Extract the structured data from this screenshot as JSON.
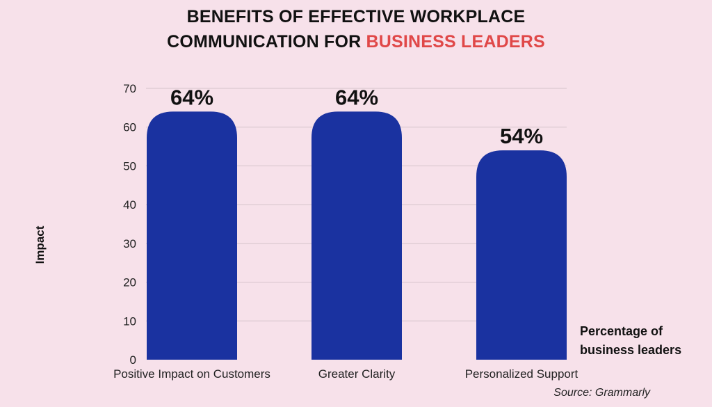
{
  "title": {
    "line1": "BENEFITS OF EFFECTIVE WORKPLACE",
    "line2_prefix": "COMMUNICATION FOR ",
    "line2_highlight": "BUSINESS LEADERS"
  },
  "colors": {
    "background": "#f7e1ea",
    "bar": "#1a32a0",
    "highlight": "#e04848",
    "grid": "#d6c3cb",
    "text": "#111111"
  },
  "note": {
    "line1": "Percentage of",
    "line2": "business leaders"
  },
  "source": "Source: Grammarly",
  "chart_data": {
    "type": "bar",
    "categories": [
      "Positive Impact on Customers",
      "Greater Clarity",
      "Personalized Support"
    ],
    "values": [
      64,
      64,
      54
    ],
    "data_labels": [
      "64%",
      "64%",
      "54%"
    ],
    "ylabel": "Impact",
    "xlabel": "",
    "ylim": [
      0,
      70
    ],
    "yticks": [
      0,
      10,
      20,
      30,
      40,
      50,
      60,
      70
    ],
    "grid": true,
    "bar_shape": "rounded-top"
  }
}
